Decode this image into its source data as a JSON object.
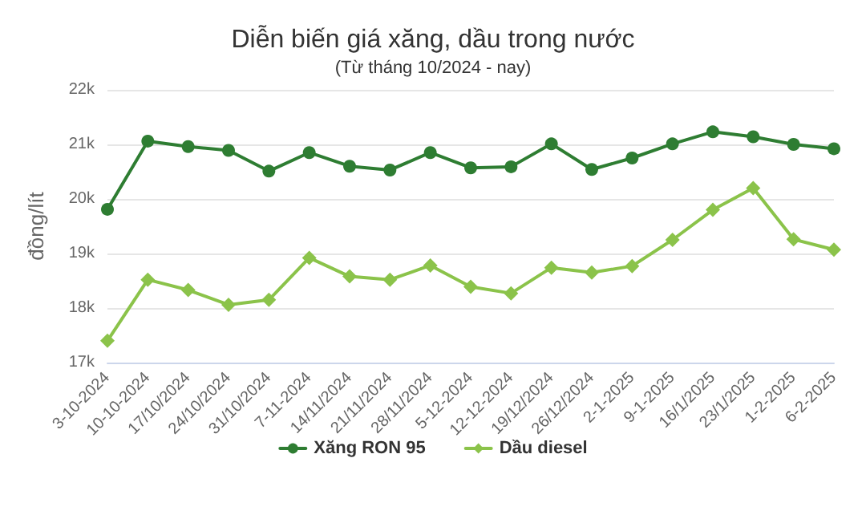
{
  "chart_data": {
    "type": "line",
    "title": "Diễn biến giá xăng, dầu trong nước",
    "subtitle": "(Từ tháng 10/2024 - nay)",
    "ylabel": "đồng/lít",
    "categories": [
      "3-10-2024",
      "10-10-2024",
      "17/10/2024",
      "24/10/2024",
      "31/10/2024",
      "7-11-2024",
      "14/11/2024",
      "21/11/2024",
      "28/11/2024",
      "5-12-2024",
      "12-12-2024",
      "19/12/2024",
      "26/12/2024",
      "2-1-2025",
      "9-1-2025",
      "16/1/2025",
      "23/1/2025",
      "1-2-2025",
      "6-2-2025"
    ],
    "series": [
      {
        "name": "Xăng RON 95",
        "color": "#2e7d32",
        "marker": "circle",
        "values": [
          19810,
          21060,
          20960,
          20890,
          20510,
          20850,
          20600,
          20530,
          20850,
          20570,
          20590,
          21010,
          20540,
          20750,
          21010,
          21230,
          21140,
          21000,
          20920
        ]
      },
      {
        "name": "Dầu diesel",
        "color": "#8bc34a",
        "marker": "diamond",
        "values": [
          17400,
          18520,
          18330,
          18060,
          18150,
          18920,
          18580,
          18520,
          18780,
          18390,
          18270,
          18740,
          18650,
          18770,
          19250,
          19800,
          20200,
          19260,
          19070
        ]
      }
    ],
    "ylim": [
      17000,
      22000
    ],
    "yticks": [
      {
        "value": 17000,
        "label": "17k"
      },
      {
        "value": 18000,
        "label": "18k"
      },
      {
        "value": 19000,
        "label": "19k"
      },
      {
        "value": 20000,
        "label": "20k"
      },
      {
        "value": 21000,
        "label": "21k"
      },
      {
        "value": 22000,
        "label": "22k"
      }
    ],
    "grid": "y",
    "legend": "bottom",
    "line_style": "solid"
  }
}
